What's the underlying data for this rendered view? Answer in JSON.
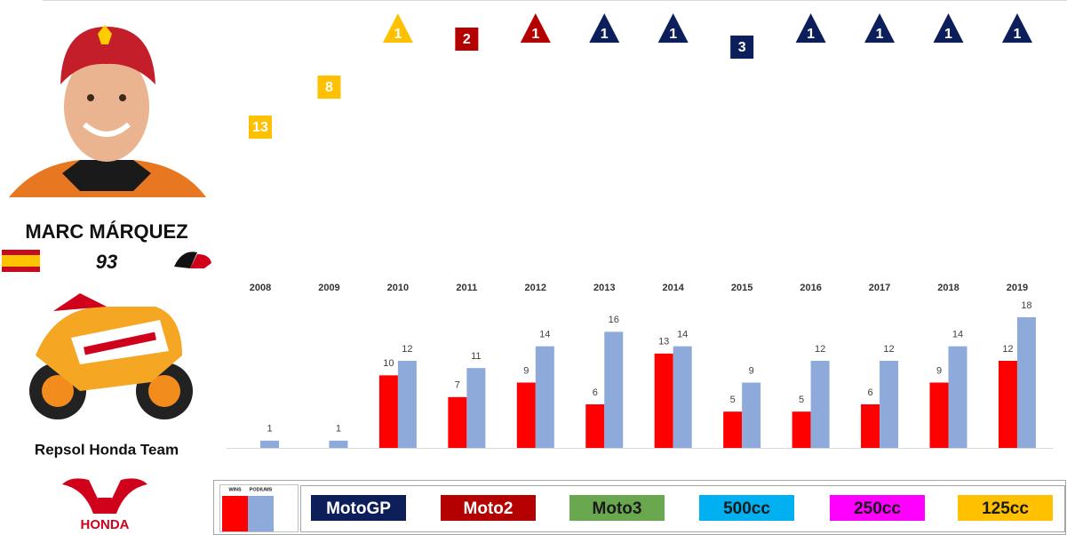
{
  "profile": {
    "name": "MARC MÁRQUEZ",
    "number": "93",
    "team": "Repsol Honda Team",
    "brand": "HONDA"
  },
  "chart_data": [
    {
      "type": "marker",
      "values": [
        13,
        8,
        1,
        2,
        1,
        1,
        1,
        3,
        1,
        1,
        1,
        1
      ],
      "classes": [
        "125cc",
        "125cc",
        "125cc",
        "Moto2",
        "Moto2",
        "MotoGP",
        "MotoGP",
        "MotoGP",
        "MotoGP",
        "MotoGP",
        "MotoGP",
        "MotoGP"
      ],
      "ylim": [
        1,
        13
      ]
    },
    {
      "type": "bar",
      "categories": [
        "2008",
        "2009",
        "2010",
        "2011",
        "2012",
        "2013",
        "2014",
        "2015",
        "2016",
        "2017",
        "2018",
        "2019"
      ],
      "series": [
        {
          "name": "WINS",
          "color": "#ff0000",
          "values": [
            null,
            null,
            10,
            7,
            9,
            6,
            13,
            5,
            5,
            6,
            9,
            12
          ]
        },
        {
          "name": "PODIUMS",
          "color": "#8eaadb",
          "values": [
            1,
            1,
            12,
            11,
            14,
            16,
            14,
            9,
            12,
            12,
            14,
            18
          ]
        }
      ],
      "ylim": [
        0,
        18
      ]
    }
  ],
  "legend": {
    "classes": [
      {
        "name": "MotoGP",
        "color": "#0c1f5b",
        "text_color": "#ffffff"
      },
      {
        "name": "Moto2",
        "color": "#b40000",
        "text_color": "#ffffff"
      },
      {
        "name": "Moto3",
        "color": "#6aa84f",
        "text_color": "#1a1a1a"
      },
      {
        "name": "500cc",
        "color": "#00b0f0",
        "text_color": "#1a1a1a"
      },
      {
        "name": "250cc",
        "color": "#ff00ff",
        "text_color": "#1a1a1a"
      },
      {
        "name": "125cc",
        "color": "#ffc000",
        "text_color": "#1a1a1a"
      }
    ]
  }
}
